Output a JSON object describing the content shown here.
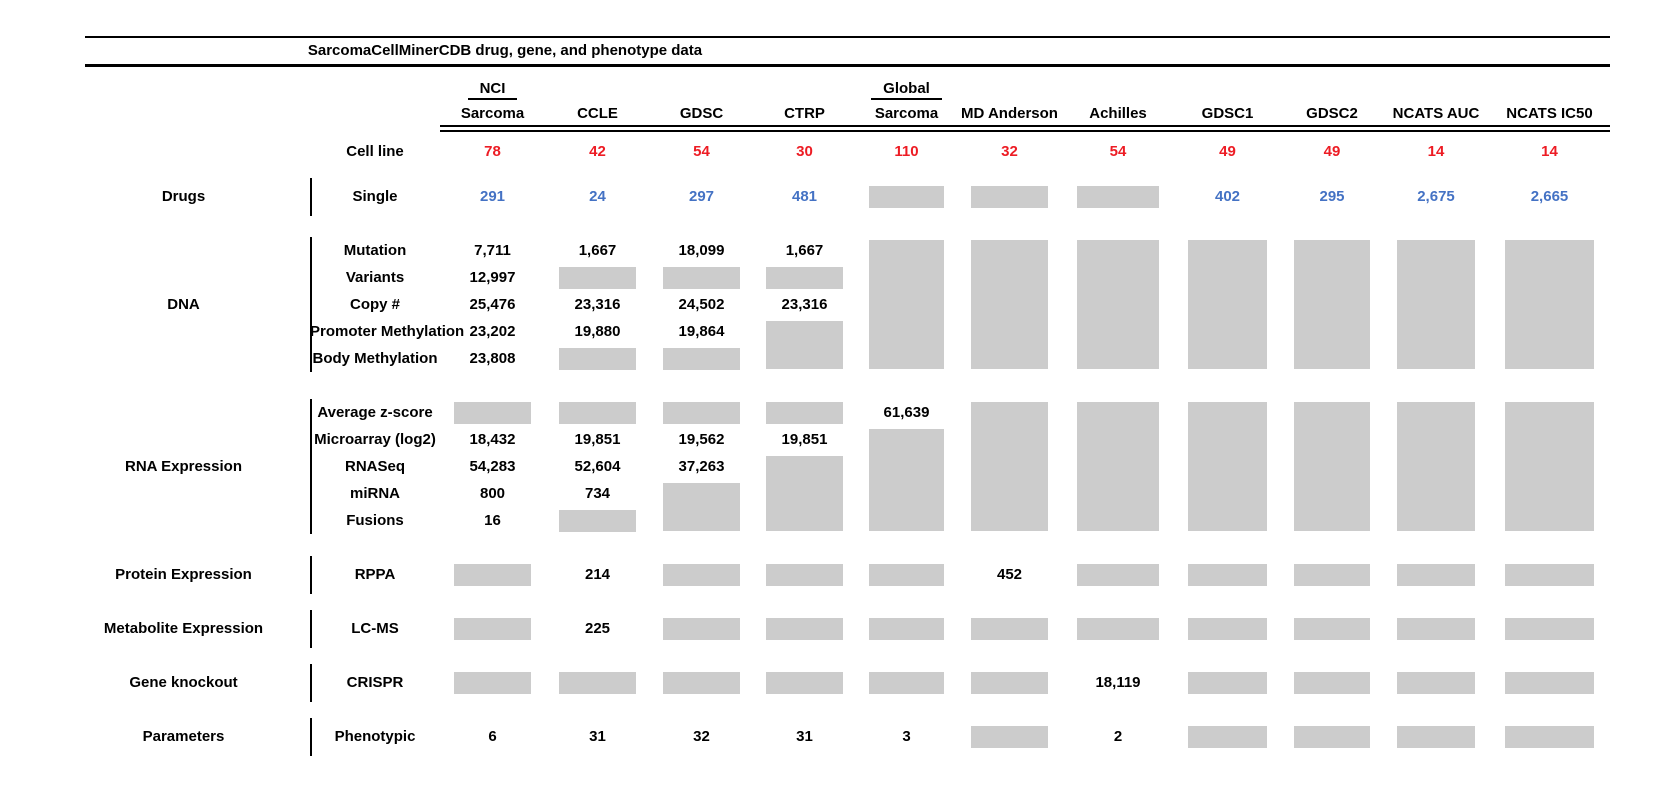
{
  "title": "SarcomaCellMinerCDB drug, gene, and phenotype data",
  "cell_line_label": "Cell line",
  "colors": {
    "cell_line_count_red": "#ED1C24",
    "drug_count_blue": "#4472C4",
    "missing_data_gray": "#CCCCCC"
  },
  "columns": [
    {
      "top": "NCI",
      "label": "Sarcoma",
      "cell_lines": "78"
    },
    {
      "label": "CCLE",
      "cell_lines": "42"
    },
    {
      "label": "GDSC",
      "cell_lines": "54"
    },
    {
      "label": "CTRP",
      "cell_lines": "30"
    },
    {
      "top": "Global",
      "label": "Sarcoma",
      "cell_lines": "110"
    },
    {
      "label": "MD Anderson",
      "cell_lines": "32"
    },
    {
      "label": "Achilles",
      "cell_lines": "54"
    },
    {
      "label": "GDSC1",
      "cell_lines": "49"
    },
    {
      "label": "GDSC2",
      "cell_lines": "49"
    },
    {
      "label": "NCATS AUC",
      "cell_lines": "14"
    },
    {
      "label": "NCATS IC50",
      "cell_lines": "14"
    }
  ],
  "sections": [
    {
      "category": "Drugs",
      "rows": [
        {
          "label": "Single",
          "color": "blue",
          "cells": [
            "291",
            "24",
            "297",
            "481",
            "gray",
            "gray",
            "gray",
            "402",
            "295",
            "2,675",
            "2,665"
          ]
        }
      ],
      "gray_spans": []
    },
    {
      "category": "DNA",
      "rows": [
        {
          "label": "Mutation",
          "cells": [
            "7,711",
            "1,667",
            "18,099",
            "1,667",
            null,
            null,
            null,
            null,
            null,
            null,
            null
          ]
        },
        {
          "label": "Variants",
          "cells": [
            "12,997",
            "gray",
            "gray",
            "gray",
            null,
            null,
            null,
            null,
            null,
            null,
            null
          ]
        },
        {
          "label": "Copy #",
          "cells": [
            "25,476",
            "23,316",
            "24,502",
            "23,316",
            null,
            null,
            null,
            null,
            null,
            null,
            null
          ]
        },
        {
          "label": "Promoter Methylation",
          "cells": [
            "23,202",
            "19,880",
            "19,864",
            null,
            null,
            null,
            null,
            null,
            null,
            null,
            null
          ]
        },
        {
          "label": "Body Methylation",
          "cells": [
            "23,808",
            "gray",
            "gray",
            null,
            null,
            null,
            null,
            null,
            null,
            null,
            null
          ]
        }
      ],
      "gray_spans": [
        {
          "col": 3,
          "rows": [
            3,
            4
          ]
        },
        {
          "col": 4,
          "rows": [
            0,
            4
          ]
        },
        {
          "col": 5,
          "rows": [
            0,
            4
          ]
        },
        {
          "col": 6,
          "rows": [
            0,
            4
          ]
        },
        {
          "col": 7,
          "rows": [
            0,
            4
          ]
        },
        {
          "col": 8,
          "rows": [
            0,
            4
          ]
        },
        {
          "col": 9,
          "rows": [
            0,
            4
          ]
        },
        {
          "col": 10,
          "rows": [
            0,
            4
          ]
        }
      ]
    },
    {
      "category": "RNA Expression",
      "rows": [
        {
          "label": "Average z-score",
          "cells": [
            "gray",
            "gray",
            "gray",
            "gray",
            "61,639",
            null,
            null,
            null,
            null,
            null,
            null
          ]
        },
        {
          "label": "Microarray (log2)",
          "cells": [
            "18,432",
            "19,851",
            "19,562",
            "19,851",
            null,
            null,
            null,
            null,
            null,
            null,
            null
          ]
        },
        {
          "label": "RNASeq",
          "cells": [
            "54,283",
            "52,604",
            "37,263",
            null,
            null,
            null,
            null,
            null,
            null,
            null,
            null
          ]
        },
        {
          "label": "miRNA",
          "cells": [
            "800",
            "734",
            null,
            null,
            null,
            null,
            null,
            null,
            null,
            null,
            null
          ]
        },
        {
          "label": "Fusions",
          "cells": [
            "16",
            "gray",
            null,
            null,
            null,
            null,
            null,
            null,
            null,
            null,
            null
          ]
        }
      ],
      "gray_spans": [
        {
          "col": 2,
          "rows": [
            3,
            4
          ]
        },
        {
          "col": 3,
          "rows": [
            2,
            4
          ]
        },
        {
          "col": 4,
          "rows": [
            1,
            4
          ]
        },
        {
          "col": 5,
          "rows": [
            0,
            4
          ]
        },
        {
          "col": 6,
          "rows": [
            0,
            4
          ]
        },
        {
          "col": 7,
          "rows": [
            0,
            4
          ]
        },
        {
          "col": 8,
          "rows": [
            0,
            4
          ]
        },
        {
          "col": 9,
          "rows": [
            0,
            4
          ]
        },
        {
          "col": 10,
          "rows": [
            0,
            4
          ]
        }
      ]
    },
    {
      "category": "Protein Expression",
      "rows": [
        {
          "label": "RPPA",
          "cells": [
            "gray",
            "214",
            "gray",
            "gray",
            "gray",
            "452",
            "gray",
            "gray",
            "gray",
            "gray",
            "gray"
          ]
        }
      ],
      "gray_spans": []
    },
    {
      "category": "Metabolite Expression",
      "rows": [
        {
          "label": "LC-MS",
          "cells": [
            "gray",
            "225",
            "gray",
            "gray",
            "gray",
            "gray",
            "gray",
            "gray",
            "gray",
            "gray",
            "gray"
          ]
        }
      ],
      "gray_spans": []
    },
    {
      "category": "Gene knockout",
      "rows": [
        {
          "label": "CRISPR",
          "cells": [
            "gray",
            "gray",
            "gray",
            "gray",
            "gray",
            "gray",
            "18,119",
            "gray",
            "gray",
            "gray",
            "gray"
          ]
        }
      ],
      "gray_spans": []
    },
    {
      "category": "Parameters",
      "rows": [
        {
          "label": "Phenotypic",
          "cells": [
            "6",
            "31",
            "32",
            "31",
            "3",
            "gray",
            "2",
            "gray",
            "gray",
            "gray",
            "gray"
          ]
        }
      ],
      "gray_spans": []
    }
  ],
  "chart_data": {
    "type": "table",
    "title": "SarcomaCellMinerCDB drug, gene, and phenotype data",
    "columns": [
      "NCI Sarcoma",
      "CCLE",
      "GDSC",
      "CTRP",
      "Global Sarcoma",
      "MD Anderson",
      "Achilles",
      "GDSC1",
      "GDSC2",
      "NCATS AUC",
      "NCATS IC50"
    ],
    "rows": [
      {
        "group": "",
        "label": "Cell line",
        "values": [
          78,
          42,
          54,
          30,
          110,
          32,
          54,
          49,
          49,
          14,
          14
        ]
      },
      {
        "group": "Drugs",
        "label": "Single",
        "values": [
          291,
          24,
          297,
          481,
          null,
          null,
          null,
          402,
          295,
          2675,
          2665
        ]
      },
      {
        "group": "DNA",
        "label": "Mutation",
        "values": [
          7711,
          1667,
          18099,
          1667,
          null,
          null,
          null,
          null,
          null,
          null,
          null
        ]
      },
      {
        "group": "DNA",
        "label": "Variants",
        "values": [
          12997,
          null,
          null,
          null,
          null,
          null,
          null,
          null,
          null,
          null,
          null
        ]
      },
      {
        "group": "DNA",
        "label": "Copy #",
        "values": [
          25476,
          23316,
          24502,
          23316,
          null,
          null,
          null,
          null,
          null,
          null,
          null
        ]
      },
      {
        "group": "DNA",
        "label": "Promoter Methylation",
        "values": [
          23202,
          19880,
          19864,
          null,
          null,
          null,
          null,
          null,
          null,
          null,
          null
        ]
      },
      {
        "group": "DNA",
        "label": "Body Methylation",
        "values": [
          23808,
          null,
          null,
          null,
          null,
          null,
          null,
          null,
          null,
          null,
          null
        ]
      },
      {
        "group": "RNA Expression",
        "label": "Average z-score",
        "values": [
          null,
          null,
          null,
          null,
          61639,
          null,
          null,
          null,
          null,
          null,
          null
        ]
      },
      {
        "group": "RNA Expression",
        "label": "Microarray (log2)",
        "values": [
          18432,
          19851,
          19562,
          19851,
          null,
          null,
          null,
          null,
          null,
          null,
          null
        ]
      },
      {
        "group": "RNA Expression",
        "label": "RNASeq",
        "values": [
          54283,
          52604,
          37263,
          null,
          null,
          null,
          null,
          null,
          null,
          null,
          null
        ]
      },
      {
        "group": "RNA Expression",
        "label": "miRNA",
        "values": [
          800,
          734,
          null,
          null,
          null,
          null,
          null,
          null,
          null,
          null,
          null
        ]
      },
      {
        "group": "RNA Expression",
        "label": "Fusions",
        "values": [
          16,
          null,
          null,
          null,
          null,
          null,
          null,
          null,
          null,
          null,
          null
        ]
      },
      {
        "group": "Protein Expression",
        "label": "RPPA",
        "values": [
          null,
          214,
          null,
          null,
          null,
          452,
          null,
          null,
          null,
          null,
          null
        ]
      },
      {
        "group": "Metabolite Expression",
        "label": "LC-MS",
        "values": [
          null,
          225,
          null,
          null,
          null,
          null,
          null,
          null,
          null,
          null,
          null
        ]
      },
      {
        "group": "Gene knockout",
        "label": "CRISPR",
        "values": [
          null,
          null,
          null,
          null,
          null,
          null,
          18119,
          null,
          null,
          null,
          null
        ]
      },
      {
        "group": "Parameters",
        "label": "Phenotypic",
        "values": [
          6,
          31,
          32,
          31,
          3,
          null,
          2,
          null,
          null,
          null,
          null
        ]
      }
    ]
  }
}
